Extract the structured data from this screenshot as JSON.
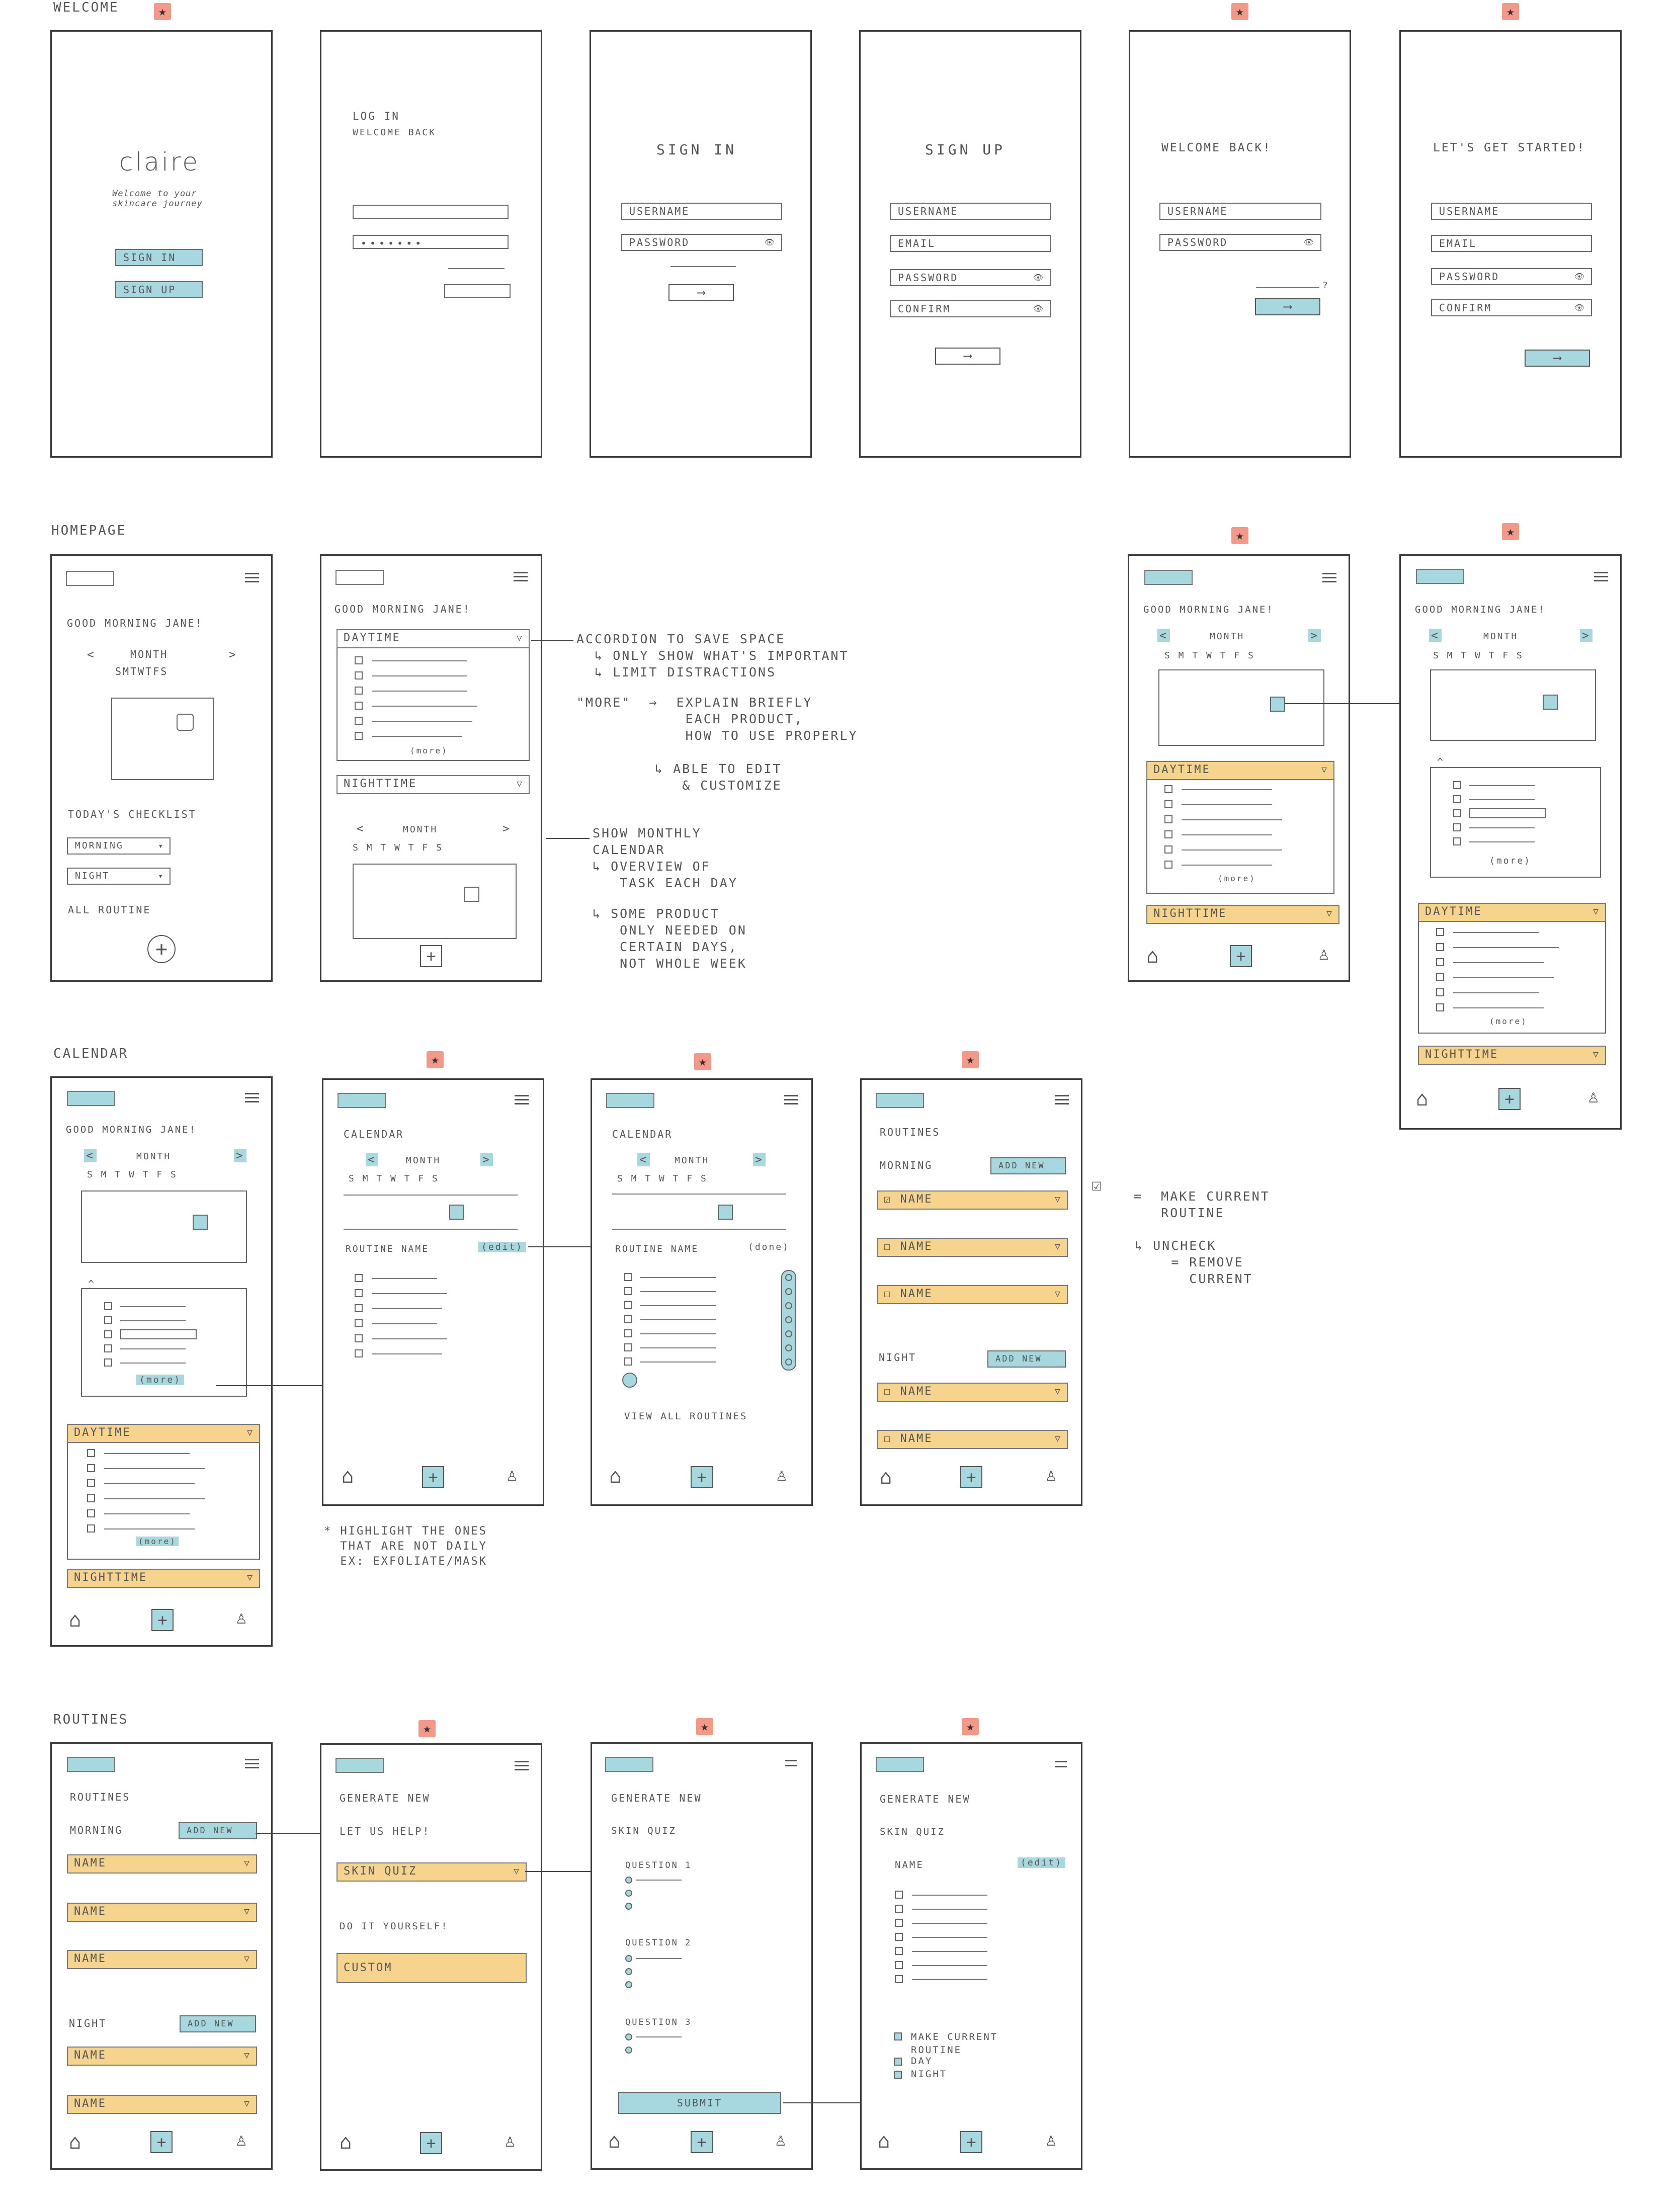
{
  "sections": {
    "welcome": "WELCOME",
    "homepage": "HOMEPAGE",
    "calendar": "CALENDAR",
    "routines": "ROUTINES"
  },
  "star_glyph": "★",
  "icons": {
    "home": "home-icon",
    "add": "plus-icon",
    "profile": "user-icon",
    "menu": "hamburger-icon"
  },
  "colors": {
    "teal": "#a8d8df",
    "amber": "#f6d48e",
    "star": "#f4998a"
  },
  "welcome": {
    "brand": "claire",
    "tagline": "Welcome to your skincare journey",
    "sign_in": "SIGN IN",
    "sign_up": "SIGN UP",
    "login_title": "LOG IN",
    "login_sub": "WELCOME BACK",
    "signin_title": "SIGN IN",
    "signup_title": "SIGN UP",
    "welcome_back": "WELCOME BACK!",
    "lets_start": "LET'S GET STARTED!",
    "username": "USERNAME",
    "email": "EMAIL",
    "password": "PASSWORD",
    "confirm": "CONFIRM",
    "arrow": "⟶",
    "question": "?"
  },
  "home": {
    "greeting": "GOOD MORNING JANE!",
    "month": "MONTH",
    "days": "S M T W T F S",
    "days_compact": "SMTWTFS",
    "prev": "<",
    "next": ">",
    "todays_checklist": "TODAY'S CHECKLIST",
    "morning": "MORNING",
    "night": "NIGHT",
    "all_routine": "ALL ROUTINE",
    "daytime": "DAYTIME",
    "nighttime": "NIGHTTIME",
    "more": "(more)"
  },
  "notes": {
    "accordion": "ACCORDION TO SAVE SPACE\n  ↳ ONLY SHOW WHAT'S IMPORTANT\n  ↳ LIMIT DISTRACTIONS",
    "more_note": "\"MORE\"  →  EXPLAIN BRIEFLY\n            EACH PRODUCT,\n            HOW TO USE PROPERLY",
    "edit_note": "↳ ABLE TO EDIT\n   & CUSTOMIZE",
    "calendar_note": "SHOW MONTHLY\nCALENDAR\n↳ OVERVIEW OF\n   TASK EACH DAY",
    "product_note": "↳ SOME PRODUCT\n   ONLY NEEDED ON\n   CERTAIN DAYS,\n   NOT WHOLE WEEK",
    "highlight_note": "* HIGHLIGHT THE ONES\n  THAT ARE NOT DAILY\n  EX: EXFOLIATE/MASK",
    "make_current": "=  MAKE CURRENT\n   ROUTINE",
    "uncheck": "↳ UNCHECK\n    = REMOVE\n      CURRENT"
  },
  "calendar": {
    "title": "CALENDAR",
    "routine_name": "ROUTINE NAME",
    "edit": "(edit)",
    "done": "(done)",
    "view_all": "VIEW ALL ROUTINES",
    "routines": "ROUTINES",
    "morning": "MORNING",
    "night": "NIGHT",
    "add_new": "ADD NEW",
    "name": "NAME"
  },
  "routines": {
    "routines": "ROUTINES",
    "morning": "MORNING",
    "night": "NIGHT",
    "add_new": "ADD NEW",
    "name": "NAME",
    "generate_new": "GENERATE NEW",
    "let_us_help": "LET US HELP!",
    "skin_quiz": "SKIN QUIZ",
    "diy": "DO IT YOURSELF!",
    "custom": "CUSTOM",
    "q1": "QUESTION 1",
    "q2": "QUESTION 2",
    "q3": "QUESTION 3",
    "submit": "SUBMIT",
    "name_label": "NAME",
    "edit": "(edit)",
    "make_current": "MAKE CURRENT\nROUTINE",
    "day": "DAY"
  }
}
